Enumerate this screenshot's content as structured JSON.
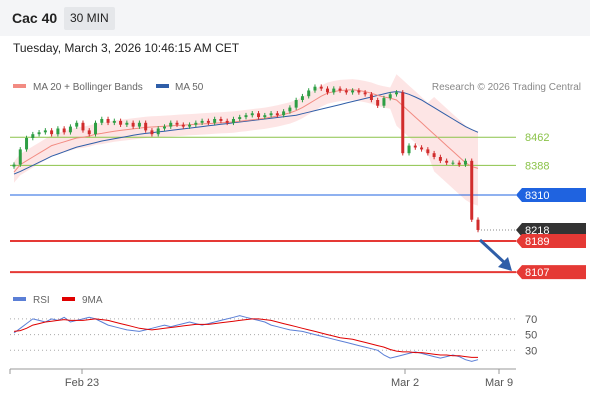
{
  "header": {
    "symbol": "Cac 40",
    "timeframe": "30 MIN",
    "datetime": "Tuesday, March 3, 2026 10:46:15 AM CET"
  },
  "legend": {
    "items": [
      {
        "label": "MA 20 + Bollinger Bands",
        "color": "#f28b82"
      },
      {
        "label": "MA 50",
        "color": "#2f5ea8"
      }
    ],
    "credit": "Research © 2026 Trading Central"
  },
  "rsi_legend": {
    "items": [
      {
        "label": "RSI",
        "color": "#5b7fd6"
      },
      {
        "label": "9MA",
        "color": "#e00000"
      }
    ]
  },
  "colors": {
    "up": "#2e9e44",
    "down": "#d12c2c",
    "bollinger_fill": "#fde2e2",
    "ma20": "#f28b82",
    "ma50": "#2f5ea8",
    "resistance": "#8bc34a",
    "pivot": "#1f63e0",
    "support": "#e53935",
    "last_price": "#333333",
    "rsi": "#5b7fd6",
    "rsi_ma": "#e00000",
    "arrow": "#2f5ea8"
  },
  "chart_data": [
    {
      "type": "candlestick",
      "title": "Cac 40",
      "timeframe": "30 MIN",
      "x_ticks": [
        "Feb 23",
        "Mar 2",
        "Mar 9"
      ],
      "ylim": [
        8060,
        8560
      ],
      "levels": [
        {
          "value": 8462,
          "label": "8462",
          "kind": "resistance"
        },
        {
          "value": 8388,
          "label": "8388",
          "kind": "resistance"
        },
        {
          "value": 8310,
          "label": "8310",
          "kind": "pivot"
        },
        {
          "value": 8218,
          "label": "8218",
          "kind": "last"
        },
        {
          "value": 8189,
          "label": "8189",
          "kind": "support"
        },
        {
          "value": 8107,
          "label": "8107",
          "kind": "support"
        }
      ],
      "close_series": [
        8390,
        8430,
        8460,
        8470,
        8475,
        8480,
        8470,
        8485,
        8475,
        8490,
        8500,
        8480,
        8470,
        8500,
        8510,
        8500,
        8505,
        8495,
        8500,
        8490,
        8500,
        8480,
        8470,
        8485,
        8490,
        8500,
        8495,
        8490,
        8495,
        8500,
        8505,
        8500,
        8510,
        8505,
        8500,
        8510,
        8515,
        8520,
        8525,
        8515,
        8520,
        8525,
        8520,
        8530,
        8540,
        8560,
        8570,
        8585,
        8595,
        8590,
        8580,
        8590,
        8585,
        8580,
        8585,
        8580,
        8575,
        8560,
        8545,
        8565,
        8575,
        8580,
        8420,
        8440,
        8435,
        8430,
        8420,
        8410,
        8400,
        8395,
        8395,
        8390,
        8400,
        8245,
        8218
      ],
      "ma20": [
        8370,
        8390,
        8400,
        8410,
        8420,
        8430,
        8440,
        8445,
        8450,
        8455,
        8460,
        8462,
        8465,
        8470,
        8472,
        8475,
        8478,
        8480,
        8482,
        8484,
        8486,
        8488,
        8489,
        8490,
        8491,
        8492,
        8493,
        8494,
        8495,
        8496,
        8497,
        8498,
        8499,
        8500,
        8501,
        8502,
        8504,
        8506,
        8508,
        8510,
        8512,
        8515,
        8518,
        8522,
        8526,
        8532,
        8540,
        8550,
        8560,
        8570,
        8578,
        8582,
        8585,
        8586,
        8587,
        8585,
        8582,
        8578,
        8572,
        8568,
        8565,
        8560,
        8545,
        8530,
        8515,
        8500,
        8485,
        8470,
        8455,
        8440,
        8425,
        8410,
        8395,
        8385,
        8380
      ],
      "ma50": [
        8365,
        8372,
        8380,
        8388,
        8396,
        8404,
        8412,
        8418,
        8424,
        8430,
        8436,
        8440,
        8444,
        8448,
        8452,
        8455,
        8458,
        8461,
        8464,
        8467,
        8470,
        8472,
        8474,
        8476,
        8478,
        8480,
        8482,
        8484,
        8486,
        8488,
        8490,
        8492,
        8494,
        8496,
        8498,
        8500,
        8502,
        8504,
        8506,
        8508,
        8510,
        8512,
        8514,
        8516,
        8518,
        8520,
        8524,
        8528,
        8532,
        8536,
        8540,
        8544,
        8548,
        8552,
        8556,
        8560,
        8564,
        8568,
        8572,
        8576,
        8580,
        8582,
        8580,
        8575,
        8568,
        8560,
        8550,
        8540,
        8530,
        8520,
        8510,
        8500,
        8490,
        8482,
        8475
      ]
    },
    {
      "type": "line",
      "title": "RSI",
      "ylim": [
        10,
        80
      ],
      "y_ticks": [
        70,
        50,
        30
      ],
      "series": [
        {
          "name": "RSI",
          "values": [
            52,
            58,
            64,
            70,
            68,
            66,
            70,
            68,
            72,
            66,
            68,
            70,
            72,
            70,
            66,
            62,
            60,
            58,
            56,
            55,
            54,
            56,
            58,
            60,
            62,
            60,
            62,
            64,
            66,
            64,
            62,
            64,
            66,
            68,
            70,
            72,
            74,
            72,
            70,
            68,
            66,
            62,
            60,
            58,
            56,
            55,
            54,
            52,
            50,
            48,
            46,
            44,
            42,
            40,
            38,
            36,
            34,
            32,
            30,
            24,
            20,
            22,
            24,
            26,
            28,
            26,
            24,
            22,
            20,
            22,
            24,
            22,
            18,
            16,
            18
          ]
        },
        {
          "name": "9MA",
          "values": [
            54,
            55,
            58,
            62,
            64,
            66,
            67,
            68,
            69,
            68,
            68,
            68,
            69,
            70,
            69,
            68,
            66,
            64,
            62,
            60,
            58,
            57,
            56,
            57,
            58,
            59,
            60,
            61,
            62,
            63,
            63,
            63,
            64,
            65,
            66,
            67,
            68,
            69,
            70,
            70,
            69,
            68,
            66,
            64,
            62,
            60,
            58,
            56,
            54,
            52,
            50,
            48,
            46,
            45,
            44,
            42,
            40,
            38,
            36,
            34,
            31,
            29,
            28,
            28,
            27,
            27,
            26,
            25,
            24,
            24,
            23,
            23,
            22,
            21,
            21
          ]
        }
      ]
    }
  ]
}
